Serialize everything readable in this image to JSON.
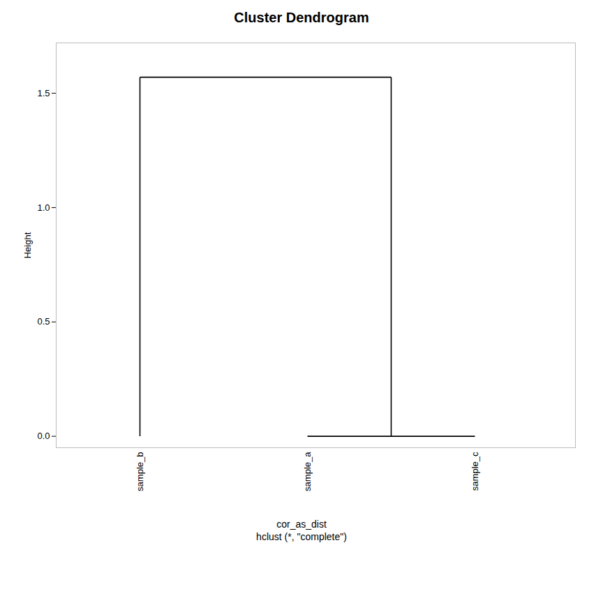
{
  "chart_data": {
    "type": "dendrogram",
    "title": "Cluster Dendrogram",
    "ylabel": "Height",
    "categories": [
      "sample_b",
      "sample_a",
      "sample_c"
    ],
    "tree": {
      "height": 1.57,
      "children": [
        "sample_b",
        {
          "height": 0.0,
          "children": [
            "sample_a",
            "sample_c"
          ]
        }
      ]
    },
    "ylim": [
      -0.05,
      1.72
    ],
    "yticks": [
      {
        "value": 0.0,
        "label": "0.0"
      },
      {
        "value": 0.5,
        "label": "0.5"
      },
      {
        "value": 1.0,
        "label": "1.0"
      },
      {
        "value": 1.5,
        "label": "1.5"
      }
    ],
    "annotations": [
      "cor_as_dist",
      "hclust (*, \"complete\")"
    ],
    "color": "#000000",
    "grid": false
  }
}
